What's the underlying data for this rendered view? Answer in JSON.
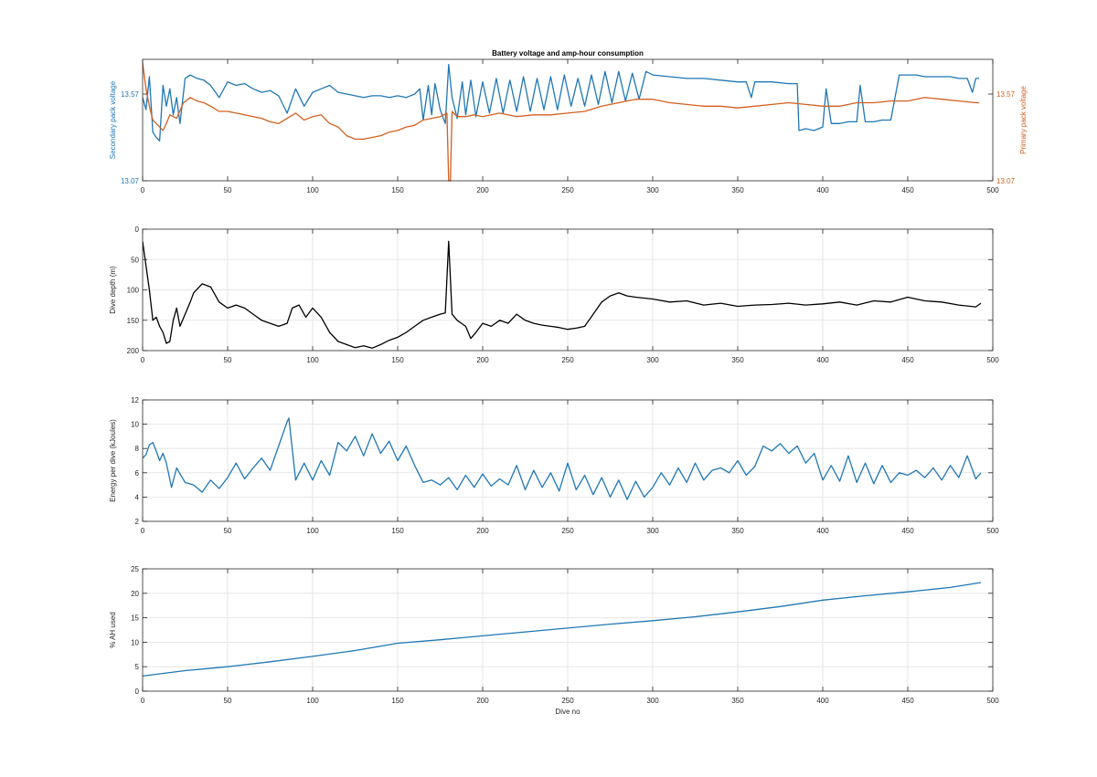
{
  "figure_title": "Battery voltage and amp-hour consumption",
  "colors": {
    "blue": "#1f77b4",
    "orange": "#d35f1f",
    "black": "#000000",
    "grid": "#e6e6e6",
    "axis": "#262626"
  },
  "chart_data": [
    {
      "type": "line",
      "title": "Battery voltage and amp-hour consumption",
      "xlabel": "",
      "ylabel": "Secondary pack voltage",
      "ylabel_right": "Primary pack voltage",
      "xlim": [
        0,
        500
      ],
      "ylim": [
        13.07,
        13.77
      ],
      "ylim_right": [
        13.07,
        13.77
      ],
      "xticks": [
        0,
        50,
        100,
        150,
        200,
        250,
        300,
        350,
        400,
        450,
        500
      ],
      "yticks": [
        13.07,
        13.57
      ],
      "yticks_right": [
        13.07,
        13.57
      ],
      "grid": false,
      "series": [
        {
          "axis": "left",
          "color": "#1f77b4",
          "x": [
            0,
            2,
            4,
            6,
            8,
            10,
            12,
            14,
            16,
            18,
            20,
            22,
            25,
            28,
            32,
            36,
            40,
            45,
            50,
            55,
            60,
            65,
            70,
            75,
            80,
            85,
            90,
            95,
            100,
            105,
            110,
            115,
            120,
            125,
            130,
            135,
            140,
            145,
            150,
            155,
            160,
            163,
            165,
            168,
            170,
            172,
            175,
            178,
            180,
            182,
            185,
            188,
            190,
            193,
            196,
            200,
            204,
            208,
            212,
            216,
            220,
            224,
            228,
            232,
            236,
            240,
            244,
            248,
            252,
            256,
            260,
            264,
            268,
            272,
            276,
            280,
            284,
            288,
            292,
            296,
            300,
            310,
            320,
            330,
            340,
            350,
            355,
            358,
            360,
            363,
            370,
            380,
            385,
            386,
            390,
            395,
            400,
            402,
            405,
            410,
            415,
            420,
            422,
            425,
            430,
            435,
            440,
            445,
            450,
            455,
            460,
            465,
            470,
            475,
            480,
            485,
            488,
            490,
            492
          ],
          "y": [
            13.55,
            13.48,
            13.67,
            13.35,
            13.32,
            13.3,
            13.62,
            13.5,
            13.6,
            13.45,
            13.55,
            13.4,
            13.66,
            13.68,
            13.66,
            13.65,
            13.62,
            13.55,
            13.64,
            13.62,
            13.63,
            13.6,
            13.58,
            13.59,
            13.56,
            13.46,
            13.6,
            13.5,
            13.58,
            13.6,
            13.62,
            13.58,
            13.57,
            13.56,
            13.55,
            13.56,
            13.56,
            13.55,
            13.56,
            13.55,
            13.57,
            13.6,
            13.42,
            13.62,
            13.45,
            13.63,
            13.48,
            13.4,
            13.74,
            13.55,
            13.43,
            13.64,
            13.45,
            13.65,
            13.44,
            13.64,
            13.46,
            13.66,
            13.46,
            13.65,
            13.47,
            13.67,
            13.47,
            13.66,
            13.48,
            13.67,
            13.48,
            13.68,
            13.5,
            13.66,
            13.5,
            13.68,
            13.51,
            13.7,
            13.52,
            13.7,
            13.53,
            13.69,
            13.54,
            13.7,
            13.68,
            13.67,
            13.66,
            13.66,
            13.65,
            13.64,
            13.64,
            13.55,
            13.64,
            13.64,
            13.64,
            13.63,
            13.63,
            13.36,
            13.37,
            13.36,
            13.38,
            13.6,
            13.4,
            13.4,
            13.41,
            13.41,
            13.62,
            13.41,
            13.41,
            13.42,
            13.42,
            13.68,
            13.68,
            13.68,
            13.67,
            13.67,
            13.67,
            13.67,
            13.66,
            13.66,
            13.58,
            13.66,
            13.66
          ]
        },
        {
          "axis": "right",
          "color": "#d35f1f",
          "x": [
            0,
            2,
            4,
            6,
            8,
            10,
            12,
            14,
            16,
            18,
            20,
            24,
            28,
            32,
            36,
            40,
            45,
            50,
            55,
            60,
            65,
            70,
            75,
            80,
            85,
            90,
            95,
            100,
            105,
            110,
            115,
            120,
            125,
            130,
            135,
            140,
            145,
            150,
            155,
            160,
            165,
            170,
            175,
            179,
            180,
            181,
            182,
            185,
            190,
            195,
            200,
            210,
            220,
            230,
            240,
            250,
            260,
            270,
            280,
            290,
            300,
            310,
            320,
            330,
            340,
            350,
            360,
            370,
            380,
            390,
            400,
            410,
            420,
            430,
            440,
            450,
            460,
            470,
            480,
            490,
            492
          ],
          "y": [
            13.75,
            13.6,
            13.5,
            13.42,
            13.4,
            13.38,
            13.36,
            13.4,
            13.45,
            13.44,
            13.43,
            13.52,
            13.55,
            13.53,
            13.52,
            13.5,
            13.47,
            13.47,
            13.46,
            13.45,
            13.44,
            13.43,
            13.41,
            13.4,
            13.43,
            13.46,
            13.42,
            13.44,
            13.45,
            13.4,
            13.38,
            13.33,
            13.31,
            13.31,
            13.32,
            13.33,
            13.35,
            13.36,
            13.38,
            13.39,
            13.42,
            13.43,
            13.44,
            13.46,
            13.07,
            13.07,
            13.47,
            13.44,
            13.44,
            13.45,
            13.44,
            13.46,
            13.44,
            13.45,
            13.45,
            13.46,
            13.47,
            13.5,
            13.52,
            13.54,
            13.54,
            13.52,
            13.51,
            13.5,
            13.5,
            13.49,
            13.5,
            13.51,
            13.52,
            13.51,
            13.5,
            13.5,
            13.52,
            13.52,
            13.53,
            13.53,
            13.55,
            13.54,
            13.53,
            13.52,
            13.52
          ]
        }
      ]
    },
    {
      "type": "line",
      "title": "",
      "xlabel": "",
      "ylabel": "Dive depth (m)",
      "xlim": [
        0,
        500
      ],
      "ylim": [
        0,
        200
      ],
      "y_reversed": true,
      "xticks": [
        0,
        50,
        100,
        150,
        200,
        250,
        300,
        350,
        400,
        450,
        500
      ],
      "yticks": [
        0,
        50,
        100,
        150,
        200
      ],
      "grid": true,
      "series": [
        {
          "color": "#000000",
          "x": [
            0,
            2,
            4,
            6,
            8,
            10,
            12,
            14,
            16,
            18,
            20,
            22,
            25,
            28,
            30,
            35,
            40,
            45,
            50,
            55,
            60,
            65,
            70,
            75,
            80,
            85,
            88,
            92,
            96,
            100,
            105,
            110,
            115,
            120,
            125,
            130,
            135,
            140,
            145,
            150,
            155,
            160,
            165,
            170,
            175,
            178,
            180,
            182,
            185,
            190,
            193,
            196,
            200,
            205,
            210,
            215,
            220,
            225,
            230,
            235,
            240,
            245,
            250,
            255,
            260,
            265,
            270,
            275,
            280,
            285,
            290,
            300,
            310,
            320,
            330,
            340,
            350,
            360,
            370,
            380,
            390,
            400,
            410,
            420,
            430,
            440,
            450,
            460,
            470,
            480,
            490,
            493
          ],
          "y": [
            20,
            60,
            100,
            150,
            145,
            160,
            170,
            188,
            185,
            150,
            130,
            160,
            140,
            120,
            105,
            90,
            95,
            120,
            130,
            125,
            130,
            140,
            150,
            155,
            160,
            155,
            130,
            125,
            145,
            130,
            145,
            170,
            185,
            190,
            195,
            192,
            196,
            190,
            183,
            178,
            170,
            160,
            150,
            145,
            140,
            138,
            20,
            140,
            150,
            160,
            180,
            170,
            155,
            160,
            150,
            155,
            140,
            150,
            155,
            158,
            160,
            162,
            165,
            163,
            160,
            140,
            120,
            110,
            105,
            110,
            112,
            115,
            120,
            118,
            125,
            122,
            127,
            125,
            124,
            122,
            125,
            123,
            120,
            125,
            118,
            120,
            112,
            118,
            120,
            125,
            128,
            122
          ]
        }
      ]
    },
    {
      "type": "line",
      "title": "",
      "xlabel": "",
      "ylabel": "Energy per dive (kJoules)",
      "xlim": [
        0,
        500
      ],
      "ylim": [
        2,
        12
      ],
      "xticks": [
        0,
        50,
        100,
        150,
        200,
        250,
        300,
        350,
        400,
        450,
        500
      ],
      "yticks": [
        2,
        4,
        6,
        8,
        10,
        12
      ],
      "grid": true,
      "series": [
        {
          "color": "#1f77b4",
          "x": [
            0,
            2,
            4,
            6,
            8,
            10,
            12,
            14,
            17,
            20,
            25,
            30,
            35,
            40,
            45,
            50,
            55,
            60,
            65,
            70,
            75,
            80,
            85,
            86,
            90,
            95,
            100,
            105,
            110,
            115,
            120,
            125,
            130,
            135,
            140,
            145,
            150,
            155,
            160,
            165,
            170,
            175,
            180,
            185,
            190,
            195,
            200,
            205,
            210,
            215,
            220,
            225,
            230,
            235,
            240,
            245,
            250,
            255,
            260,
            265,
            270,
            275,
            280,
            285,
            290,
            295,
            300,
            305,
            310,
            315,
            320,
            325,
            330,
            335,
            340,
            345,
            350,
            355,
            360,
            365,
            370,
            375,
            380,
            385,
            390,
            395,
            400,
            405,
            410,
            415,
            420,
            425,
            430,
            435,
            440,
            445,
            450,
            455,
            460,
            465,
            470,
            475,
            480,
            485,
            490,
            493
          ],
          "y": [
            7.2,
            7.5,
            8.3,
            8.5,
            7.8,
            7.0,
            7.6,
            6.8,
            4.8,
            6.4,
            5.2,
            5.0,
            4.4,
            5.4,
            4.7,
            5.6,
            6.8,
            5.5,
            6.4,
            7.2,
            6.2,
            8.2,
            10.2,
            10.5,
            5.4,
            6.8,
            5.4,
            7.0,
            5.8,
            8.5,
            7.8,
            9.0,
            7.4,
            9.2,
            7.6,
            8.6,
            7.0,
            8.2,
            6.6,
            5.2,
            5.4,
            5.0,
            5.6,
            4.6,
            5.8,
            4.8,
            5.9,
            4.9,
            5.5,
            5.0,
            6.6,
            4.6,
            6.2,
            4.8,
            6.0,
            4.5,
            6.8,
            4.6,
            5.8,
            4.2,
            5.6,
            4.0,
            5.4,
            3.8,
            5.3,
            4.0,
            4.8,
            6.0,
            5.0,
            6.4,
            5.2,
            6.8,
            5.4,
            6.2,
            6.4,
            6.0,
            7.0,
            5.8,
            6.5,
            8.2,
            7.8,
            8.4,
            7.6,
            8.2,
            6.8,
            7.6,
            5.4,
            6.6,
            5.3,
            7.4,
            5.2,
            6.8,
            5.1,
            6.6,
            5.2,
            6.0,
            5.8,
            6.2,
            5.6,
            6.4,
            5.4,
            6.6,
            5.6,
            7.4,
            5.5,
            6.0
          ]
        }
      ]
    },
    {
      "type": "line",
      "title": "",
      "xlabel": "Dive no",
      "ylabel": "% AH used",
      "xlim": [
        0,
        500
      ],
      "ylim": [
        0,
        25
      ],
      "xticks": [
        0,
        50,
        100,
        150,
        200,
        250,
        300,
        350,
        400,
        450,
        500
      ],
      "yticks": [
        0,
        5,
        10,
        15,
        20,
        25
      ],
      "grid": true,
      "series": [
        {
          "color": "#1f77b4",
          "x": [
            0,
            25,
            50,
            75,
            100,
            125,
            150,
            175,
            200,
            225,
            250,
            275,
            300,
            325,
            350,
            375,
            400,
            425,
            450,
            475,
            493
          ],
          "y": [
            3.1,
            4.2,
            5.0,
            6.0,
            7.1,
            8.3,
            9.8,
            10.5,
            11.3,
            12.1,
            12.9,
            13.7,
            14.4,
            15.2,
            16.2,
            17.3,
            18.6,
            19.5,
            20.3,
            21.2,
            22.2
          ]
        }
      ]
    }
  ]
}
